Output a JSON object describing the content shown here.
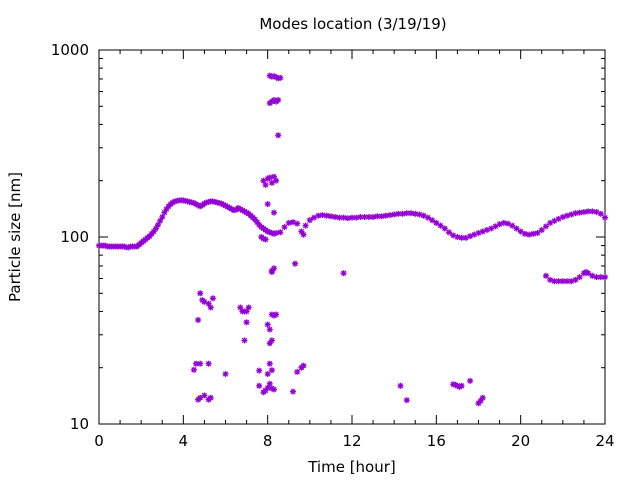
{
  "chart_data": {
    "type": "scatter",
    "title": "Modes location (3/19/19)",
    "xlabel": "Time [hour]",
    "ylabel": "Particle size [nm]",
    "xlim": [
      0,
      24
    ],
    "ylim": [
      10,
      1000
    ],
    "yscale": "log",
    "xticks": [
      0,
      4,
      8,
      12,
      16,
      20,
      24
    ],
    "yticks": [
      10,
      100,
      1000
    ],
    "xtick_labels": [
      "0",
      "4",
      "8",
      "12",
      "16",
      "20",
      "24"
    ],
    "ytick_labels": [
      "10",
      "100",
      "1000"
    ],
    "grid": false,
    "legend": "none",
    "marker_color": "#9400d3",
    "series": [
      {
        "points": [
          [
            0.0,
            90
          ],
          [
            0.1,
            90
          ],
          [
            0.2,
            90
          ],
          [
            0.3,
            90
          ],
          [
            0.4,
            89
          ],
          [
            0.5,
            89
          ],
          [
            0.6,
            89
          ],
          [
            0.7,
            89
          ],
          [
            0.8,
            89
          ],
          [
            0.9,
            89
          ],
          [
            1.0,
            89
          ],
          [
            1.1,
            89
          ],
          [
            1.2,
            89
          ],
          [
            1.3,
            88
          ],
          [
            1.4,
            88
          ],
          [
            1.5,
            89
          ],
          [
            1.6,
            89
          ],
          [
            1.7,
            89
          ],
          [
            1.8,
            89
          ],
          [
            1.9,
            91
          ],
          [
            2.0,
            93
          ],
          [
            2.1,
            95
          ],
          [
            2.2,
            97
          ],
          [
            2.3,
            99
          ],
          [
            2.4,
            101
          ],
          [
            2.5,
            104
          ],
          [
            2.6,
            107
          ],
          [
            2.7,
            111
          ],
          [
            2.8,
            116
          ],
          [
            2.9,
            122
          ],
          [
            3.0,
            128
          ],
          [
            3.1,
            135
          ],
          [
            3.2,
            141
          ],
          [
            3.3,
            146
          ],
          [
            3.4,
            150
          ],
          [
            3.5,
            153
          ],
          [
            3.6,
            155
          ],
          [
            3.7,
            156
          ],
          [
            3.8,
            157
          ],
          [
            3.9,
            157
          ],
          [
            4.0,
            157
          ],
          [
            4.1,
            156
          ],
          [
            4.2,
            155
          ],
          [
            4.3,
            154
          ],
          [
            4.4,
            153
          ],
          [
            4.5,
            152
          ],
          [
            4.6,
            150
          ],
          [
            4.7,
            148
          ],
          [
            4.8,
            146
          ],
          [
            4.9,
            148
          ],
          [
            5.0,
            151
          ],
          [
            5.1,
            153
          ],
          [
            5.2,
            154
          ],
          [
            5.3,
            155
          ],
          [
            5.4,
            155
          ],
          [
            5.5,
            154
          ],
          [
            5.6,
            153
          ],
          [
            5.7,
            152
          ],
          [
            5.8,
            151
          ],
          [
            5.9,
            149
          ],
          [
            6.0,
            147
          ],
          [
            6.1,
            145
          ],
          [
            6.2,
            143
          ],
          [
            6.3,
            141
          ],
          [
            6.4,
            139
          ],
          [
            6.5,
            140
          ],
          [
            6.6,
            143
          ],
          [
            6.7,
            141
          ],
          [
            6.8,
            139
          ],
          [
            6.9,
            137
          ],
          [
            7.0,
            135
          ],
          [
            7.1,
            133
          ],
          [
            7.2,
            130
          ],
          [
            7.3,
            127
          ],
          [
            7.4,
            124
          ],
          [
            7.5,
            120
          ],
          [
            7.6,
            116
          ],
          [
            7.7,
            113
          ],
          [
            7.8,
            111
          ],
          [
            7.9,
            109
          ],
          [
            8.0,
            107
          ],
          [
            8.1,
            106
          ],
          [
            8.2,
            105
          ],
          [
            8.3,
            104
          ],
          [
            8.4,
            105
          ],
          [
            8.6,
            106
          ],
          [
            8.8,
            113
          ],
          [
            9.0,
            119
          ],
          [
            9.2,
            120
          ],
          [
            9.4,
            118
          ],
          [
            9.6,
            107
          ],
          [
            9.7,
            103
          ],
          [
            9.8,
            115
          ],
          [
            10.0,
            123
          ],
          [
            10.2,
            127
          ],
          [
            10.4,
            130
          ],
          [
            10.6,
            131
          ],
          [
            10.8,
            130
          ],
          [
            11.0,
            129
          ],
          [
            11.2,
            128
          ],
          [
            11.4,
            127
          ],
          [
            11.6,
            127
          ],
          [
            11.8,
            126
          ],
          [
            12.0,
            127
          ],
          [
            12.2,
            127
          ],
          [
            12.4,
            128
          ],
          [
            12.6,
            128
          ],
          [
            12.8,
            128
          ],
          [
            13.0,
            128
          ],
          [
            13.2,
            129
          ],
          [
            13.4,
            129
          ],
          [
            13.6,
            130
          ],
          [
            13.8,
            131
          ],
          [
            14.0,
            132
          ],
          [
            14.2,
            133
          ],
          [
            14.4,
            133
          ],
          [
            14.6,
            134
          ],
          [
            14.8,
            134
          ],
          [
            15.0,
            133
          ],
          [
            15.2,
            132
          ],
          [
            15.4,
            130
          ],
          [
            15.6,
            127
          ],
          [
            15.8,
            123
          ],
          [
            16.0,
            119
          ],
          [
            16.2,
            115
          ],
          [
            16.4,
            111
          ],
          [
            16.6,
            106
          ],
          [
            16.8,
            102
          ],
          [
            17.0,
            100
          ],
          [
            17.2,
            99
          ],
          [
            17.4,
            99
          ],
          [
            17.6,
            101
          ],
          [
            17.8,
            103
          ],
          [
            18.0,
            105
          ],
          [
            18.2,
            107
          ],
          [
            18.4,
            109
          ],
          [
            18.6,
            111
          ],
          [
            18.8,
            114
          ],
          [
            19.0,
            117
          ],
          [
            19.2,
            119
          ],
          [
            19.4,
            118
          ],
          [
            19.6,
            115
          ],
          [
            19.8,
            111
          ],
          [
            20.0,
            107
          ],
          [
            20.2,
            104
          ],
          [
            20.4,
            103
          ],
          [
            20.6,
            104
          ],
          [
            20.8,
            105
          ],
          [
            21.0,
            109
          ],
          [
            21.2,
            114
          ],
          [
            21.4,
            119
          ],
          [
            21.6,
            122
          ],
          [
            21.8,
            125
          ],
          [
            22.0,
            128
          ],
          [
            22.2,
            130
          ],
          [
            22.4,
            132
          ],
          [
            22.6,
            134
          ],
          [
            22.8,
            135
          ],
          [
            23.0,
            136
          ],
          [
            23.2,
            137
          ],
          [
            23.4,
            137
          ],
          [
            23.6,
            136
          ],
          [
            23.8,
            133
          ],
          [
            24.0,
            127
          ],
          [
            21.2,
            62
          ],
          [
            21.4,
            59
          ],
          [
            21.6,
            58
          ],
          [
            21.8,
            58
          ],
          [
            22.0,
            58
          ],
          [
            22.2,
            58
          ],
          [
            22.4,
            58
          ],
          [
            22.6,
            59
          ],
          [
            22.8,
            61
          ],
          [
            23.0,
            64
          ],
          [
            23.1,
            65
          ],
          [
            23.2,
            64
          ],
          [
            23.4,
            62
          ],
          [
            23.6,
            61
          ],
          [
            23.8,
            61
          ],
          [
            24.0,
            61
          ],
          [
            4.8,
            50
          ],
          [
            4.9,
            46
          ],
          [
            5.0,
            45
          ],
          [
            5.2,
            44
          ],
          [
            5.4,
            47
          ],
          [
            5.3,
            42
          ],
          [
            4.7,
            36
          ],
          [
            4.6,
            21
          ],
          [
            4.8,
            21
          ],
          [
            5.2,
            21
          ],
          [
            4.5,
            19.5
          ],
          [
            6.0,
            18.5
          ],
          [
            4.7,
            13.5
          ],
          [
            4.8,
            13.8
          ],
          [
            5.0,
            14.2
          ],
          [
            5.2,
            13.5
          ],
          [
            5.3,
            13.8
          ],
          [
            6.7,
            42
          ],
          [
            6.8,
            40
          ],
          [
            6.9,
            40
          ],
          [
            7.0,
            40
          ],
          [
            7.1,
            42
          ],
          [
            6.9,
            28
          ],
          [
            7.0,
            35
          ],
          [
            7.6,
            19.3
          ],
          [
            7.6,
            16
          ],
          [
            7.8,
            14.8
          ],
          [
            7.9,
            15.1
          ],
          [
            8.0,
            15.6
          ],
          [
            8.1,
            16.4
          ],
          [
            8.2,
            15.5
          ],
          [
            8.3,
            15.3
          ],
          [
            8.1,
            21
          ],
          [
            8.2,
            19.4
          ],
          [
            8.0,
            18.5
          ],
          [
            8.1,
            27
          ],
          [
            8.2,
            28
          ],
          [
            8.2,
            38.5
          ],
          [
            8.3,
            38
          ],
          [
            8.4,
            38.5
          ],
          [
            8.0,
            34
          ],
          [
            8.1,
            32
          ],
          [
            8.2,
            65
          ],
          [
            8.3,
            68
          ],
          [
            8.2,
            66
          ],
          [
            7.8,
            98
          ],
          [
            7.9,
            97
          ],
          [
            7.7,
            100
          ],
          [
            8.0,
            150
          ],
          [
            8.3,
            135
          ],
          [
            7.9,
            190
          ],
          [
            8.0,
            205
          ],
          [
            8.1,
            208
          ],
          [
            8.2,
            195
          ],
          [
            8.3,
            210
          ],
          [
            8.4,
            200
          ],
          [
            7.8,
            200
          ],
          [
            8.1,
            520
          ],
          [
            8.2,
            530
          ],
          [
            8.3,
            540
          ],
          [
            8.4,
            530
          ],
          [
            8.5,
            540
          ],
          [
            8.1,
            730
          ],
          [
            8.2,
            720
          ],
          [
            8.3,
            725
          ],
          [
            8.4,
            715
          ],
          [
            8.5,
            705
          ],
          [
            8.6,
            710
          ],
          [
            8.5,
            350
          ],
          [
            9.3,
            72
          ],
          [
            9.4,
            19
          ],
          [
            9.6,
            20
          ],
          [
            9.7,
            20.5
          ],
          [
            9.2,
            14.9
          ],
          [
            11.6,
            64
          ],
          [
            14.3,
            16
          ],
          [
            14.6,
            13.4
          ],
          [
            16.8,
            16.3
          ],
          [
            16.9,
            16.2
          ],
          [
            17.0,
            16
          ],
          [
            17.1,
            15.8
          ],
          [
            17.2,
            16
          ],
          [
            17.6,
            17
          ],
          [
            18.0,
            12.9
          ],
          [
            18.1,
            13.3
          ],
          [
            18.2,
            13.8
          ]
        ]
      }
    ]
  }
}
